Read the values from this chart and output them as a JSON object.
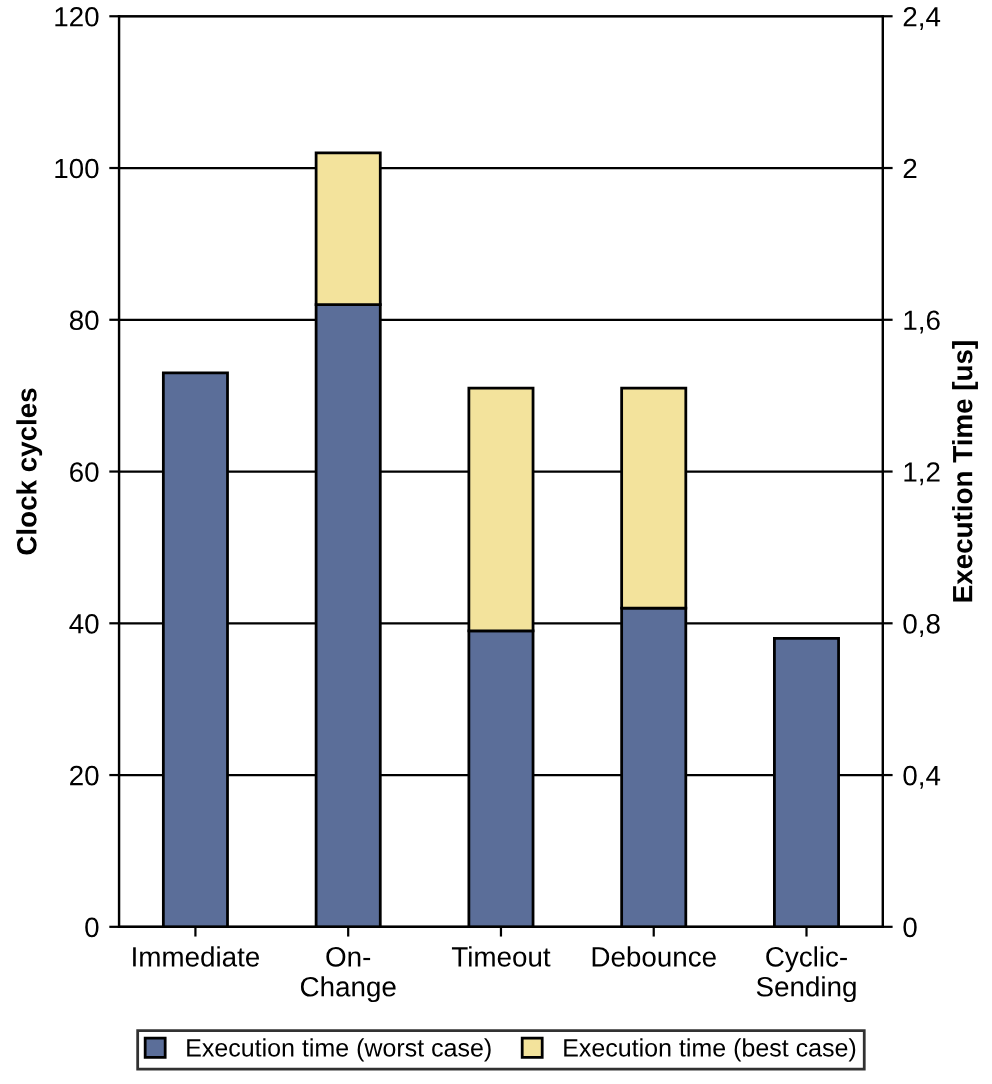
{
  "chart_data": {
    "type": "bar",
    "stacked": true,
    "categories": [
      "Immediate",
      "On-\nChange",
      "Timeout",
      "Debounce",
      "Cyclic-\nSending"
    ],
    "series": [
      {
        "name": "Execution time (worst case)",
        "color": "#5b6e99",
        "values": [
          73,
          82,
          39,
          42,
          38
        ]
      },
      {
        "name": "Execution time (best case)",
        "color": "#f3e39c",
        "values": [
          null,
          20,
          32,
          29,
          null
        ]
      }
    ],
    "ylabel": "Clock cycles",
    "y2label": "Execution Time [us]",
    "ylim": [
      0,
      120
    ],
    "yticks": [
      0,
      20,
      40,
      60,
      80,
      100,
      120
    ],
    "y2lim": [
      0,
      2.4
    ],
    "y2ticks": [
      0,
      {
        "value": 0.4,
        "label": "0,4"
      },
      {
        "value": 0.8,
        "label": "0,8"
      },
      {
        "value": 1.2,
        "label": "1,2"
      },
      {
        "value": 1.6,
        "label": "1,6"
      },
      2,
      {
        "value": 2.4,
        "label": "2,4"
      }
    ],
    "grid": "y",
    "legend": "bottom"
  }
}
